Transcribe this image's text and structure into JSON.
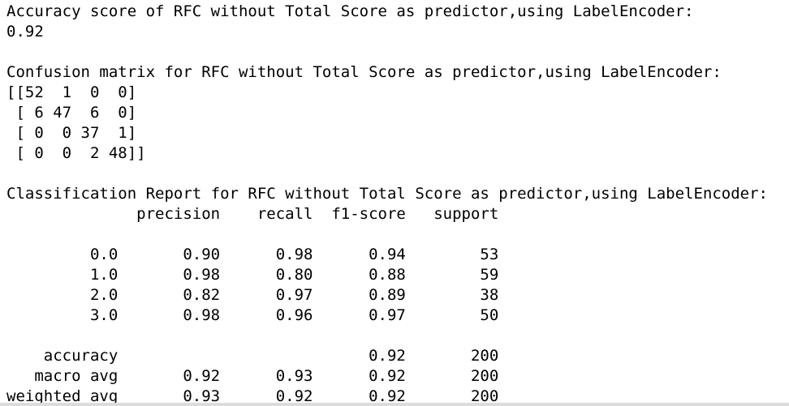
{
  "output": {
    "lines": [
      "Accuracy score of RFC without Total Score as predictor,using LabelEncoder:",
      "0.92",
      "",
      "Confusion matrix for RFC without Total Score as predictor,using LabelEncoder:",
      "[[52  1  0  0]",
      " [ 6 47  6  0]",
      " [ 0  0 37  1]",
      " [ 0  0  2 48]]",
      "",
      "Classification Report for RFC without Total Score as predictor,using LabelEncoder:",
      "              precision    recall  f1-score   support",
      "",
      "         0.0       0.90      0.98      0.94        53",
      "         1.0       0.98      0.80      0.88        59",
      "         2.0       0.82      0.97      0.89        38",
      "         3.0       0.98      0.96      0.97        50",
      "",
      "    accuracy                           0.92       200",
      "   macro avg       0.92      0.93      0.92       200",
      "weighted avg       0.93      0.92      0.92       200"
    ]
  }
}
